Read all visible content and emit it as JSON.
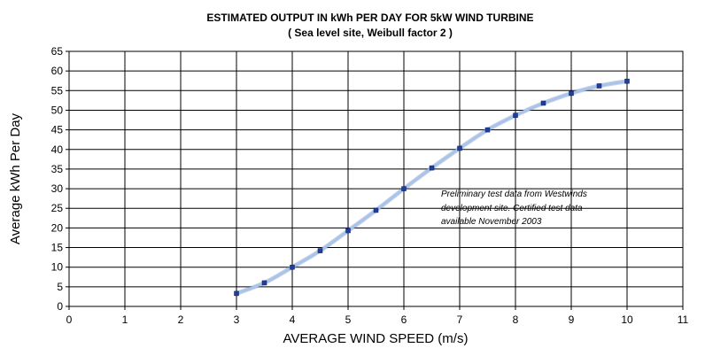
{
  "chart_data": {
    "type": "line",
    "title": "ESTIMATED OUTPUT IN kWh PER DAY FOR 5kW WIND TURBINE",
    "subtitle": "( Sea level site,  Weibull factor 2 )",
    "xlabel": "AVERAGE WIND SPEED (m/s)",
    "ylabel": "Average kWh  Per Day",
    "xlim": [
      0,
      11
    ],
    "ylim": [
      0,
      65
    ],
    "xticks": [
      "0",
      "1",
      "2",
      "3",
      "4",
      "5",
      "6",
      "7",
      "8",
      "9",
      "10",
      "11"
    ],
    "yticks": [
      "0",
      "5",
      "10",
      "15",
      "20",
      "25",
      "30",
      "35",
      "40",
      "45",
      "50",
      "55",
      "60",
      "65"
    ],
    "grid": true,
    "legend": "none",
    "colors": {
      "line": "#a9c4e8",
      "marker": "#1f3fa0",
      "grid": "#000000"
    },
    "series": [
      {
        "x": [
          3,
          3.5,
          4,
          4.5,
          5,
          5.5,
          6,
          6.5,
          7,
          7.5,
          8,
          8.5,
          9,
          9.5,
          10
        ],
        "y": [
          3.3,
          6.0,
          10.0,
          14.2,
          19.3,
          24.5,
          30.0,
          35.3,
          40.3,
          45.0,
          48.7,
          51.8,
          54.3,
          56.2,
          57.4
        ]
      }
    ],
    "annotations": [
      "Preliminary test data from Westwinds",
      "development site. Certified test data",
      "available November 2003"
    ]
  }
}
